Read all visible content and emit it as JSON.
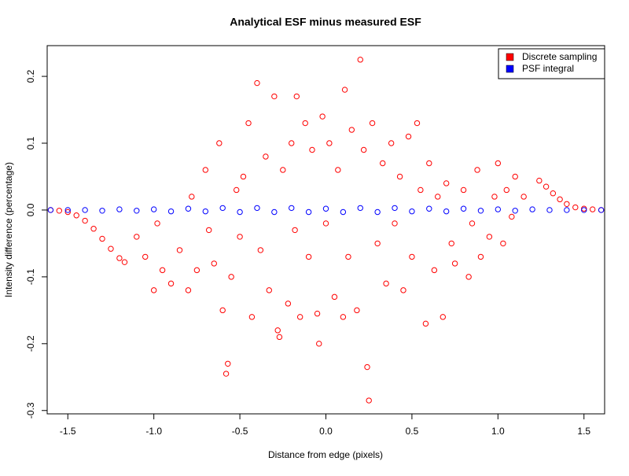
{
  "chart_data": {
    "type": "scatter",
    "title": "Analytical ESF minus measured ESF",
    "x_label": "Distance from edge (pixels)",
    "y_label": "Intensity difference (percentage)",
    "xlim": [
      -1.62,
      1.62
    ],
    "ylim": [
      -0.305,
      0.246
    ],
    "xticks": [
      -1.5,
      {
        "value": -1,
        "label": "-1.0"
      },
      -0.5,
      {
        "value": 0,
        "label": "0.0"
      },
      0.5,
      {
        "value": 1,
        "label": "1.0"
      },
      1.5
    ],
    "yticks": [
      -0.3,
      -0.2,
      -0.1,
      {
        "value": 0,
        "label": "0.0"
      },
      0.1,
      0.2
    ],
    "legend_position": "top-right",
    "series": [
      {
        "name": "Discrete sampling",
        "color": "#ff0000",
        "x": [
          -1.6,
          -1.55,
          -1.5,
          -1.45,
          -1.4,
          -1.35,
          -1.3,
          -1.25,
          -1.2,
          -1.17,
          -1.1,
          -1.05,
          -1.0,
          -0.98,
          -0.95,
          -0.9,
          -0.85,
          -0.8,
          -0.78,
          -0.75,
          -0.7,
          -0.68,
          -0.65,
          -0.62,
          -0.6,
          -0.58,
          -0.57,
          -0.55,
          -0.52,
          -0.5,
          -0.48,
          -0.45,
          -0.43,
          -0.4,
          -0.38,
          -0.35,
          -0.33,
          -0.3,
          -0.28,
          -0.27,
          -0.25,
          -0.22,
          -0.2,
          -0.18,
          -0.17,
          -0.15,
          -0.12,
          -0.1,
          -0.08,
          -0.05,
          -0.04,
          -0.02,
          0,
          0.02,
          0.05,
          0.07,
          0.1,
          0.11,
          0.13,
          0.15,
          0.18,
          0.2,
          0.22,
          0.24,
          0.25,
          0.27,
          0.3,
          0.33,
          0.35,
          0.38,
          0.4,
          0.43,
          0.45,
          0.48,
          0.5,
          0.53,
          0.55,
          0.58,
          0.6,
          0.63,
          0.65,
          0.68,
          0.7,
          0.73,
          0.75,
          0.8,
          0.83,
          0.85,
          0.88,
          0.9,
          0.95,
          0.98,
          1.0,
          1.03,
          1.05,
          1.08,
          1.1,
          1.15,
          1.24,
          1.28,
          1.32,
          1.36,
          1.4,
          1.45,
          1.5,
          1.55,
          1.6
        ],
        "values": [
          0,
          -0.001,
          -0.003,
          -0.008,
          -0.016,
          -0.028,
          -0.043,
          -0.058,
          -0.072,
          -0.078,
          -0.04,
          -0.07,
          -0.12,
          -0.02,
          -0.09,
          -0.11,
          -0.06,
          -0.12,
          0.02,
          -0.09,
          0.06,
          -0.03,
          -0.08,
          0.1,
          -0.15,
          -0.245,
          -0.23,
          -0.1,
          0.03,
          -0.04,
          0.05,
          0.13,
          -0.16,
          0.19,
          -0.06,
          0.08,
          -0.12,
          0.17,
          -0.18,
          -0.19,
          0.06,
          -0.14,
          0.1,
          -0.03,
          0.17,
          -0.16,
          0.13,
          -0.07,
          0.09,
          -0.155,
          -0.2,
          0.14,
          -0.02,
          0.1,
          -0.13,
          0.06,
          -0.16,
          0.18,
          -0.07,
          0.12,
          -0.15,
          0.225,
          0.09,
          -0.235,
          -0.285,
          0.13,
          -0.05,
          0.07,
          -0.11,
          0.1,
          -0.02,
          0.05,
          -0.12,
          0.11,
          -0.07,
          0.13,
          0.03,
          -0.17,
          0.07,
          -0.09,
          0.02,
          -0.16,
          0.04,
          -0.05,
          -0.08,
          0.03,
          -0.1,
          -0.02,
          0.06,
          -0.07,
          -0.04,
          0.02,
          0.07,
          -0.05,
          0.03,
          -0.01,
          0.05,
          0.02,
          0.044,
          0.035,
          0.025,
          0.016,
          0.009,
          0.004,
          0.002,
          0.001,
          0
        ]
      },
      {
        "name": "PSF integral",
        "color": "#0000ff",
        "x": [
          -1.6,
          -1.5,
          -1.4,
          -1.3,
          -1.2,
          -1.1,
          -1.0,
          -0.9,
          -0.8,
          -0.7,
          -0.6,
          -0.5,
          -0.4,
          -0.3,
          -0.2,
          -0.1,
          0,
          0.1,
          0.2,
          0.3,
          0.4,
          0.5,
          0.6,
          0.7,
          0.8,
          0.9,
          1.0,
          1.1,
          1.2,
          1.3,
          1.4,
          1.5,
          1.6
        ],
        "values": [
          0,
          0,
          0,
          -0.001,
          0.001,
          -0.001,
          0.001,
          -0.002,
          0.002,
          -0.002,
          0.003,
          -0.003,
          0.003,
          -0.003,
          0.003,
          -0.003,
          0.002,
          -0.003,
          0.003,
          -0.003,
          0.003,
          -0.002,
          0.002,
          -0.002,
          0.002,
          -0.001,
          0.001,
          -0.001,
          0.001,
          0,
          0,
          0,
          0
        ]
      }
    ]
  }
}
